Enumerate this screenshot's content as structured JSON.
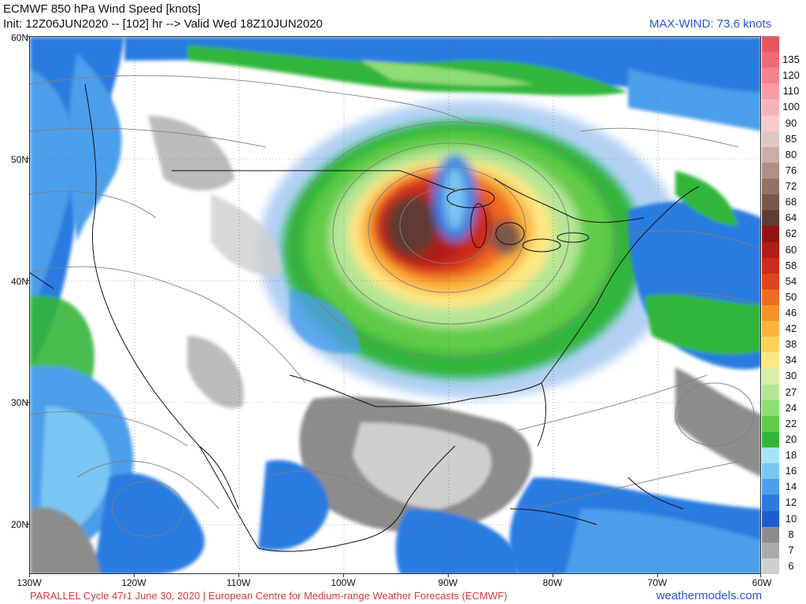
{
  "header": {
    "title": "ECMWF 850 hPa Wind Speed [knots]",
    "init_line": "Init: 12Z06JUN2020 -- [102] hr --> Valid Wed 18Z10JUN2020",
    "max_wind": "MAX-WIND: 73.6 knots"
  },
  "map": {
    "lat_labels": [
      "60N",
      "50N",
      "40N",
      "30N",
      "20N"
    ],
    "lon_labels": [
      "130W",
      "120W",
      "110W",
      "100W",
      "90W",
      "80W",
      "70W",
      "60W"
    ],
    "features": {
      "jet_core_region": "Upper Midwest / Great Lakes",
      "jet_core_color": "#5a3a32"
    }
  },
  "colorbar": {
    "levels": [
      {
        "label": "",
        "color": "#e8565f"
      },
      {
        "label": "135",
        "color": "#ee6b73"
      },
      {
        "label": "120",
        "color": "#f2848a"
      },
      {
        "label": "110",
        "color": "#f59da2"
      },
      {
        "label": "100",
        "color": "#f7b4b7"
      },
      {
        "label": "90",
        "color": "#f9cacc"
      },
      {
        "label": "85",
        "color": "#dcc9c4"
      },
      {
        "label": "80",
        "color": "#c8aea6"
      },
      {
        "label": "76",
        "color": "#b08f86"
      },
      {
        "label": "72",
        "color": "#957067"
      },
      {
        "label": "68",
        "color": "#7a554c"
      },
      {
        "label": "64",
        "color": "#5e3b33"
      },
      {
        "label": "62",
        "color": "#8e1512"
      },
      {
        "label": "60",
        "color": "#b01e16"
      },
      {
        "label": "58",
        "color": "#cc2a1a"
      },
      {
        "label": "54",
        "color": "#e2431f"
      },
      {
        "label": "50",
        "color": "#f06a22"
      },
      {
        "label": "46",
        "color": "#f79228"
      },
      {
        "label": "42",
        "color": "#fbb43a"
      },
      {
        "label": "38",
        "color": "#fcd15a"
      },
      {
        "label": "34",
        "color": "#fde784"
      },
      {
        "label": "30",
        "color": "#d8efa8"
      },
      {
        "label": "27",
        "color": "#b5e696"
      },
      {
        "label": "24",
        "color": "#8fdc74"
      },
      {
        "label": "22",
        "color": "#62cc4a"
      },
      {
        "label": "20",
        "color": "#33b53a"
      },
      {
        "label": "18",
        "color": "#a7e3f5"
      },
      {
        "label": "16",
        "color": "#7ac6f2"
      },
      {
        "label": "14",
        "color": "#4c9eea"
      },
      {
        "label": "12",
        "color": "#2b7be0"
      },
      {
        "label": "10",
        "color": "#1f5bd0"
      },
      {
        "label": "8",
        "color": "#8c8c8c"
      },
      {
        "label": "7",
        "color": "#ababab"
      },
      {
        "label": "6",
        "color": "#cfcfcf"
      }
    ]
  },
  "footer": {
    "left": "PARALLEL Cycle 47r1 June 30, 2020 | European Centre for Medium-range Weather Forecasts (ECMWF)",
    "right": "weathermodels.com"
  }
}
